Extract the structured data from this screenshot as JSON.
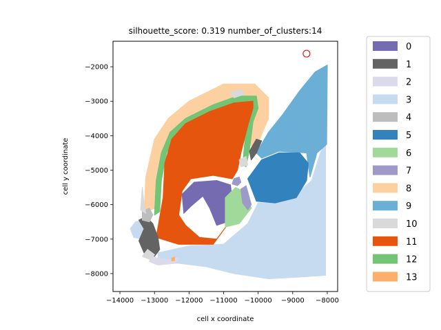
{
  "chart_data": {
    "type": "scatter",
    "title": "silhouette_score: 0.319 number_of_clusters:14",
    "xlabel": "cell x coordinate",
    "ylabel": "cell y coordinate",
    "xlim": [
      -14200,
      -7700
    ],
    "ylim": [
      -8520,
      -1260
    ],
    "xticks": [
      {
        "value": -14000,
        "label": "−14000"
      },
      {
        "value": -13000,
        "label": "−13000"
      },
      {
        "value": -12000,
        "label": "−12000"
      },
      {
        "value": -11000,
        "label": "−11000"
      },
      {
        "value": -10000,
        "label": "−10000"
      },
      {
        "value": -9000,
        "label": "−9000"
      },
      {
        "value": -8000,
        "label": "−8000"
      }
    ],
    "yticks": [
      {
        "value": -2000,
        "label": "−2000"
      },
      {
        "value": -3000,
        "label": "−3000"
      },
      {
        "value": -4000,
        "label": "−4000"
      },
      {
        "value": -5000,
        "label": "−5000"
      },
      {
        "value": -6000,
        "label": "−6000"
      },
      {
        "value": -7000,
        "label": "−7000"
      },
      {
        "value": -8000,
        "label": "−8000"
      }
    ],
    "grid": false,
    "legend_placement": "outside-right",
    "highlight_marker": {
      "x": -8600,
      "y": -1620,
      "color": "#e41a1c"
    },
    "clusters": [
      {
        "name": "0",
        "color": "#756bb1",
        "regions": [
          {
            "shape": "polygon",
            "points": [
              [
                -12200,
                -5700
              ],
              [
                -11850,
                -5350
              ],
              [
                -11200,
                -5300
              ],
              [
                -10800,
                -5430
              ],
              [
                -10750,
                -5900
              ],
              [
                -10900,
                -6500
              ],
              [
                -11200,
                -6600
              ],
              [
                -11400,
                -6100
              ],
              [
                -11600,
                -5750
              ],
              [
                -11950,
                -6050
              ],
              [
                -12150,
                -6250
              ]
            ]
          }
        ]
      },
      {
        "name": "1",
        "color": "#636363",
        "regions": [
          {
            "shape": "polygon",
            "points": [
              [
                -13450,
                -6450
              ],
              [
                -13250,
                -6350
              ],
              [
                -13050,
                -6550
              ],
              [
                -12900,
                -6950
              ],
              [
                -12850,
                -7300
              ],
              [
                -13000,
                -7500
              ],
              [
                -13300,
                -7400
              ],
              [
                -13450,
                -7050
              ],
              [
                -13300,
                -6700
              ]
            ]
          },
          {
            "shape": "polygon",
            "points": [
              [
                -10200,
                -4700
              ],
              [
                -10050,
                -4500
              ],
              [
                -9900,
                -4150
              ],
              [
                -10050,
                -4100
              ],
              [
                -10250,
                -4450
              ]
            ]
          }
        ]
      },
      {
        "name": "2",
        "color": "#dadaeb",
        "regions": [
          {
            "shape": "polygon",
            "points": [
              [
                -13100,
                -7520
              ],
              [
                -12600,
                -7600
              ],
              [
                -12300,
                -7550
              ],
              [
                -12400,
                -7700
              ],
              [
                -12900,
                -7750
              ],
              [
                -13150,
                -7650
              ]
            ]
          }
        ]
      },
      {
        "name": "3",
        "color": "#c6dbef",
        "regions": [
          {
            "shape": "polygon",
            "points": [
              [
                -12900,
                -7400
              ],
              [
                -12000,
                -7200
              ],
              [
                -11000,
                -7150
              ],
              [
                -10300,
                -6550
              ],
              [
                -10000,
                -5950
              ],
              [
                -9500,
                -5950
              ],
              [
                -8900,
                -5700
              ],
              [
                -8450,
                -5300
              ],
              [
                -8200,
                -4500
              ],
              [
                -8050,
                -4200
              ],
              [
                -8050,
                -8050
              ],
              [
                -8800,
                -8100
              ],
              [
                -9700,
                -8150
              ],
              [
                -10700,
                -8000
              ],
              [
                -11500,
                -7800
              ],
              [
                -12300,
                -7700
              ],
              [
                -12900,
                -7700
              ]
            ]
          },
          {
            "shape": "polygon",
            "points": [
              [
                -13550,
                -6500
              ],
              [
                -13300,
                -6450
              ],
              [
                -13200,
                -6800
              ],
              [
                -13350,
                -7000
              ],
              [
                -13600,
                -6950
              ],
              [
                -13700,
                -6700
              ]
            ]
          }
        ]
      },
      {
        "name": "4",
        "color": "#bdbdbd",
        "regions": [
          {
            "shape": "polygon",
            "points": [
              [
                -13350,
                -6200
              ],
              [
                -13150,
                -6100
              ],
              [
                -13050,
                -6300
              ],
              [
                -13150,
                -6500
              ],
              [
                -13350,
                -6450
              ]
            ]
          }
        ]
      },
      {
        "name": "5",
        "color": "#3182bd",
        "regions": [
          {
            "shape": "polygon",
            "points": [
              [
                -10300,
                -5250
              ],
              [
                -9900,
                -4700
              ],
              [
                -9400,
                -4500
              ],
              [
                -8800,
                -4500
              ],
              [
                -8550,
                -4800
              ],
              [
                -8600,
                -5300
              ],
              [
                -8900,
                -5800
              ],
              [
                -9500,
                -5950
              ],
              [
                -10050,
                -5900
              ]
            ]
          }
        ]
      },
      {
        "name": "6",
        "color": "#a1d99b",
        "regions": [
          {
            "shape": "polygon",
            "points": [
              [
                -10950,
                -5800
              ],
              [
                -10650,
                -5500
              ],
              [
                -10350,
                -5650
              ],
              [
                -10200,
                -6100
              ],
              [
                -10550,
                -6550
              ],
              [
                -10950,
                -6650
              ]
            ]
          }
        ]
      },
      {
        "name": "7",
        "color": "#9e9ac8",
        "regions": [
          {
            "shape": "polygon",
            "points": [
              [
                -10700,
                -5250
              ],
              [
                -10550,
                -5200
              ],
              [
                -10500,
                -5350
              ],
              [
                -10600,
                -5450
              ],
              [
                -10750,
                -5400
              ]
            ]
          },
          {
            "shape": "polygon",
            "points": [
              [
                -10500,
                -5550
              ],
              [
                -10350,
                -5450
              ],
              [
                -10200,
                -6000
              ],
              [
                -10300,
                -6150
              ],
              [
                -10450,
                -5950
              ]
            ]
          }
        ]
      },
      {
        "name": "8",
        "color": "#fdd0a2",
        "regions": [
          {
            "shape": "polygon",
            "points": [
              [
                -13300,
                -6200
              ],
              [
                -13250,
                -5200
              ],
              [
                -13000,
                -4100
              ],
              [
                -12600,
                -3500
              ],
              [
                -12000,
                -3000
              ],
              [
                -11000,
                -2500
              ],
              [
                -10100,
                -2500
              ],
              [
                -9700,
                -2900
              ],
              [
                -9700,
                -3500
              ],
              [
                -10000,
                -4200
              ],
              [
                -10200,
                -4300
              ],
              [
                -10300,
                -3300
              ],
              [
                -10800,
                -3200
              ],
              [
                -11600,
                -3400
              ],
              [
                -12300,
                -3800
              ],
              [
                -12700,
                -4400
              ],
              [
                -12850,
                -5200
              ],
              [
                -12950,
                -6100
              ]
            ]
          }
        ]
      },
      {
        "name": "9",
        "color": "#6baed6",
        "regions": [
          {
            "shape": "polygon",
            "points": [
              [
                -10050,
                -4500
              ],
              [
                -9700,
                -3900
              ],
              [
                -9300,
                -3400
              ],
              [
                -8800,
                -2700
              ],
              [
                -8350,
                -2150
              ],
              [
                -8000,
                -1950
              ],
              [
                -8020,
                -4250
              ],
              [
                -8300,
                -4500
              ],
              [
                -8500,
                -5200
              ],
              [
                -8600,
                -4500
              ],
              [
                -9400,
                -4450
              ],
              [
                -9900,
                -4650
              ]
            ]
          }
        ]
      },
      {
        "name": "10",
        "color": "#d9d9d9",
        "regions": [
          {
            "shape": "polygon",
            "points": [
              [
                -13400,
                -6150
              ],
              [
                -13350,
                -5500
              ],
              [
                -13300,
                -6000
              ],
              [
                -13250,
                -6250
              ]
            ]
          },
          {
            "shape": "polygon",
            "points": [
              [
                -13200,
                -7300
              ],
              [
                -13000,
                -7450
              ],
              [
                -13100,
                -7600
              ],
              [
                -13350,
                -7500
              ]
            ]
          },
          {
            "shape": "polygon",
            "points": [
              [
                -10800,
                -2750
              ],
              [
                -10500,
                -2650
              ],
              [
                -10400,
                -2800
              ],
              [
                -10700,
                -2900
              ]
            ]
          },
          {
            "shape": "polygon",
            "points": [
              [
                -10550,
                -4700
              ],
              [
                -10350,
                -4600
              ],
              [
                -10300,
                -4850
              ],
              [
                -10500,
                -4900
              ]
            ]
          }
        ]
      },
      {
        "name": "11",
        "color": "#e6550d",
        "regions": [
          {
            "shape": "polygon",
            "points": [
              [
                -12950,
                -6950
              ],
              [
                -12750,
                -5800
              ],
              [
                -12700,
                -4800
              ],
              [
                -12500,
                -4100
              ],
              [
                -12100,
                -3650
              ],
              [
                -11400,
                -3300
              ],
              [
                -10700,
                -3050
              ],
              [
                -10150,
                -3000
              ],
              [
                -10150,
                -3200
              ],
              [
                -10300,
                -3700
              ],
              [
                -10500,
                -4500
              ],
              [
                -10600,
                -5000
              ],
              [
                -10750,
                -5250
              ],
              [
                -11300,
                -5150
              ],
              [
                -11950,
                -5250
              ],
              [
                -12200,
                -5600
              ],
              [
                -12300,
                -6300
              ],
              [
                -12100,
                -6600
              ],
              [
                -11700,
                -6950
              ],
              [
                -11200,
                -7000
              ],
              [
                -10900,
                -6600
              ],
              [
                -11300,
                -7150
              ],
              [
                -12300,
                -7150
              ]
            ]
          }
        ]
      },
      {
        "name": "12",
        "color": "#74c476",
        "regions": [
          {
            "shape": "polygon",
            "points": [
              [
                -13000,
                -6300
              ],
              [
                -12950,
                -5300
              ],
              [
                -12800,
                -4500
              ],
              [
                -12550,
                -3900
              ],
              [
                -12100,
                -3500
              ],
              [
                -11300,
                -3100
              ],
              [
                -10600,
                -2850
              ],
              [
                -10050,
                -2850
              ],
              [
                -10000,
                -3200
              ],
              [
                -10150,
                -3600
              ],
              [
                -10250,
                -4400
              ],
              [
                -10350,
                -4900
              ],
              [
                -10450,
                -4850
              ],
              [
                -10400,
                -4300
              ],
              [
                -10300,
                -3250
              ],
              [
                -10900,
                -3200
              ],
              [
                -11700,
                -3450
              ],
              [
                -12350,
                -3900
              ],
              [
                -12650,
                -4500
              ],
              [
                -12800,
                -5300
              ],
              [
                -12850,
                -6200
              ]
            ]
          }
        ]
      },
      {
        "name": "13",
        "color": "#fdae6b",
        "regions": [
          {
            "shape": "polygon",
            "points": [
              [
                -12500,
                -7550
              ],
              [
                -12420,
                -7520
              ],
              [
                -12420,
                -7620
              ],
              [
                -12500,
                -7630
              ]
            ]
          }
        ]
      }
    ]
  }
}
